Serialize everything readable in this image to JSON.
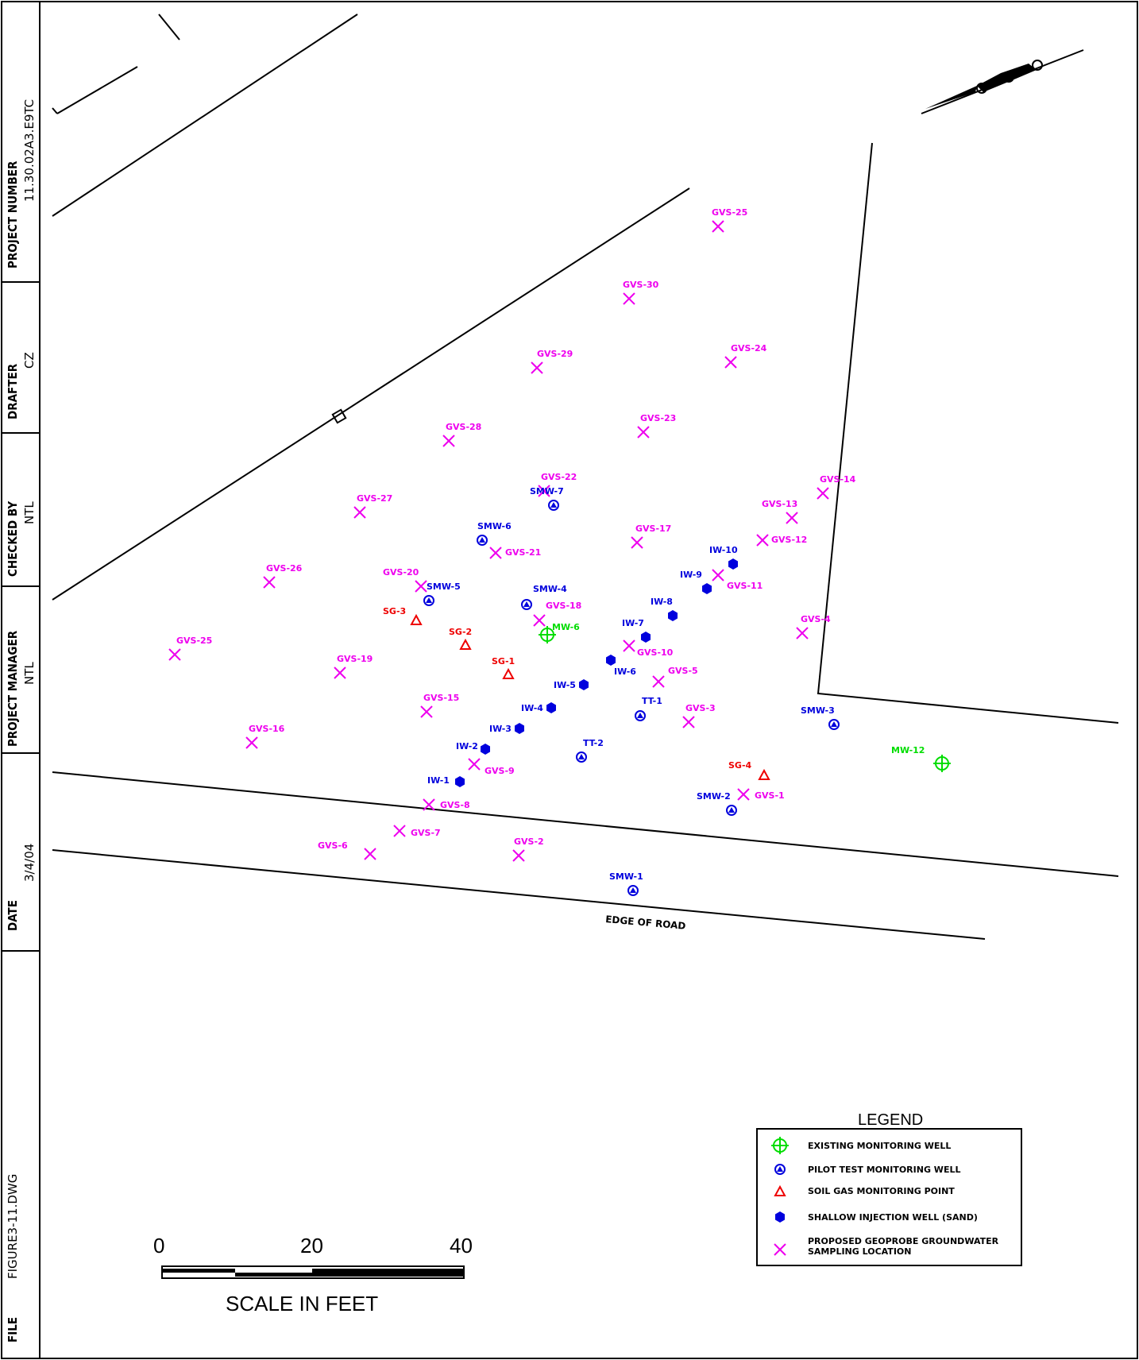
{
  "title_block": {
    "project_number_label": "PROJECT NUMBER",
    "project_number_value": "11.30.02A3.E9TC",
    "drafter_label": "DRAFTER",
    "drafter_value": "CZ",
    "checked_by_label": "CHECKED BY",
    "checked_by_value": "NTL",
    "project_manager_label": "PROJECT MANAGER",
    "project_manager_value": "NTL",
    "date_label": "DATE",
    "date_value": "3/4/04",
    "file_label": "FILE",
    "file_value": "FIGURE3-11.DWG"
  },
  "map": {
    "edge_of_road_label": "EDGE OF ROAD",
    "colors": {
      "existing_well": "#00dd00",
      "pilot_well": "#0000dd",
      "soil_gas": "#ee0000",
      "injection_well": "#0000dd",
      "groundwater_sample": "#ee00ee",
      "linework": "#000000"
    },
    "gvs_points": [
      {
        "label": "GVS-25"
      },
      {
        "label": "GVS-30"
      },
      {
        "label": "GVS-29"
      },
      {
        "label": "GVS-24"
      },
      {
        "label": "GVS-28"
      },
      {
        "label": "GVS-23"
      },
      {
        "label": "GVS-22"
      },
      {
        "label": "GVS-14"
      },
      {
        "label": "GVS-27"
      },
      {
        "label": "GVS-13"
      },
      {
        "label": "GVS-17"
      },
      {
        "label": "GVS-21"
      },
      {
        "label": "GVS-12"
      },
      {
        "label": "GVS-26"
      },
      {
        "label": "GVS-20"
      },
      {
        "label": "GVS-11"
      },
      {
        "label": "GVS-18"
      },
      {
        "label": "GVS-4"
      },
      {
        "label": "GVS-25"
      },
      {
        "label": "GVS-10"
      },
      {
        "label": "GVS-19"
      },
      {
        "label": "GVS-5"
      },
      {
        "label": "GVS-15"
      },
      {
        "label": "GVS-3"
      },
      {
        "label": "GVS-16"
      },
      {
        "label": "GVS-9"
      },
      {
        "label": "GVS-1"
      },
      {
        "label": "GVS-8"
      },
      {
        "label": "GVS-7"
      },
      {
        "label": "GVS-6"
      },
      {
        "label": "GVS-2"
      }
    ],
    "pilot_wells": [
      {
        "label": "SMW-7"
      },
      {
        "label": "SMW-6"
      },
      {
        "label": "SMW-5"
      },
      {
        "label": "SMW-4"
      },
      {
        "label": "SMW-3"
      },
      {
        "label": "SMW-2"
      },
      {
        "label": "SMW-1"
      },
      {
        "label": "TT-1"
      },
      {
        "label": "TT-2"
      }
    ],
    "injection_wells": [
      {
        "label": "IW-10"
      },
      {
        "label": "IW-9"
      },
      {
        "label": "IW-8"
      },
      {
        "label": "IW-7"
      },
      {
        "label": "IW-6"
      },
      {
        "label": "IW-5"
      },
      {
        "label": "IW-4"
      },
      {
        "label": "IW-3"
      },
      {
        "label": "IW-2"
      },
      {
        "label": "IW-1"
      }
    ],
    "soil_gas_points": [
      {
        "label": "SG-3"
      },
      {
        "label": "SG-2"
      },
      {
        "label": "SG-1"
      },
      {
        "label": "SG-4"
      }
    ],
    "existing_wells": [
      {
        "label": "MW-6"
      },
      {
        "label": "MW-12"
      }
    ]
  },
  "legend": {
    "title": "LEGEND",
    "items": [
      {
        "label": "EXISTING MONITORING WELL",
        "icon": "existing-well-icon"
      },
      {
        "label": "PILOT TEST MONITORING WELL",
        "icon": "pilot-well-icon"
      },
      {
        "label": "SOIL GAS MONITORING POINT",
        "icon": "soil-gas-icon"
      },
      {
        "label": "SHALLOW INJECTION WELL (SAND)",
        "icon": "injection-well-icon"
      },
      {
        "label_line1": "PROPOSED GEOPROBE GROUNDWATER",
        "label_line2": "SAMPLING LOCATION",
        "icon": "x-marker-icon"
      }
    ]
  },
  "scale": {
    "tick_labels": [
      "0",
      "20",
      "40"
    ],
    "title": "SCALE IN FEET"
  }
}
